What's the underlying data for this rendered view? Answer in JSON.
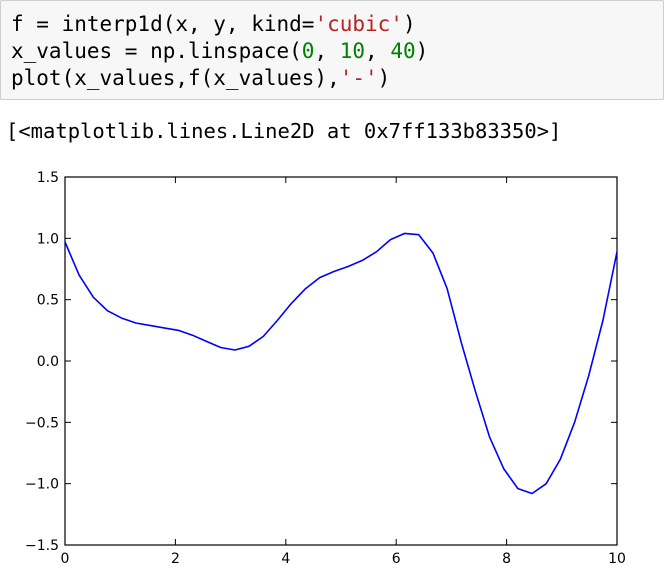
{
  "code": {
    "line1": {
      "prefix": "f = interp1d(x, y, kind=",
      "string": "'cubic'",
      "suffix": ")"
    },
    "line2": {
      "prefix": "x_values = np.linspace(",
      "num1": "0",
      "sep1": ", ",
      "num2": "10",
      "sep2": ", ",
      "num3": "40",
      "suffix": ")"
    },
    "line3": {
      "prefix": "plot(x_values,f(x_values),",
      "string": "'-'",
      "suffix": ")"
    }
  },
  "output": {
    "text": "[<matplotlib.lines.Line2D at 0x7ff133b83350>]"
  },
  "chart_data": {
    "type": "line",
    "xlim": [
      0,
      10
    ],
    "ylim": [
      -1.5,
      1.5
    ],
    "xticks": [
      0,
      2,
      4,
      6,
      8,
      10
    ],
    "yticks": [
      -1.5,
      -1.0,
      -0.5,
      0.0,
      0.5,
      1.0,
      1.5
    ],
    "xtick_labels": [
      "0",
      "2",
      "4",
      "6",
      "8",
      "10"
    ],
    "ytick_labels": [
      "−1.5",
      "−1.0",
      "−0.5",
      "0.0",
      "0.5",
      "1.0",
      "1.5"
    ],
    "grid": false,
    "series": [
      {
        "color": "#0000ff",
        "x": [
          0,
          0.256,
          0.513,
          0.769,
          1.026,
          1.282,
          1.538,
          1.795,
          2.051,
          2.308,
          2.564,
          2.821,
          3.077,
          3.333,
          3.59,
          3.846,
          4.103,
          4.359,
          4.615,
          4.872,
          5.128,
          5.385,
          5.641,
          5.897,
          6.154,
          6.41,
          6.667,
          6.923,
          7.179,
          7.436,
          7.692,
          7.949,
          8.205,
          8.462,
          8.718,
          8.974,
          9.231,
          9.487,
          9.744,
          10
        ],
        "values": [
          0.97,
          0.7,
          0.52,
          0.41,
          0.35,
          0.31,
          0.29,
          0.27,
          0.25,
          0.21,
          0.16,
          0.11,
          0.09,
          0.12,
          0.2,
          0.33,
          0.47,
          0.59,
          0.68,
          0.73,
          0.77,
          0.82,
          0.89,
          0.99,
          1.04,
          1.03,
          0.88,
          0.59,
          0.15,
          -0.25,
          -0.62,
          -0.88,
          -1.04,
          -1.08,
          -1.0,
          -0.8,
          -0.5,
          -0.12,
          0.33,
          0.89
        ]
      }
    ]
  }
}
